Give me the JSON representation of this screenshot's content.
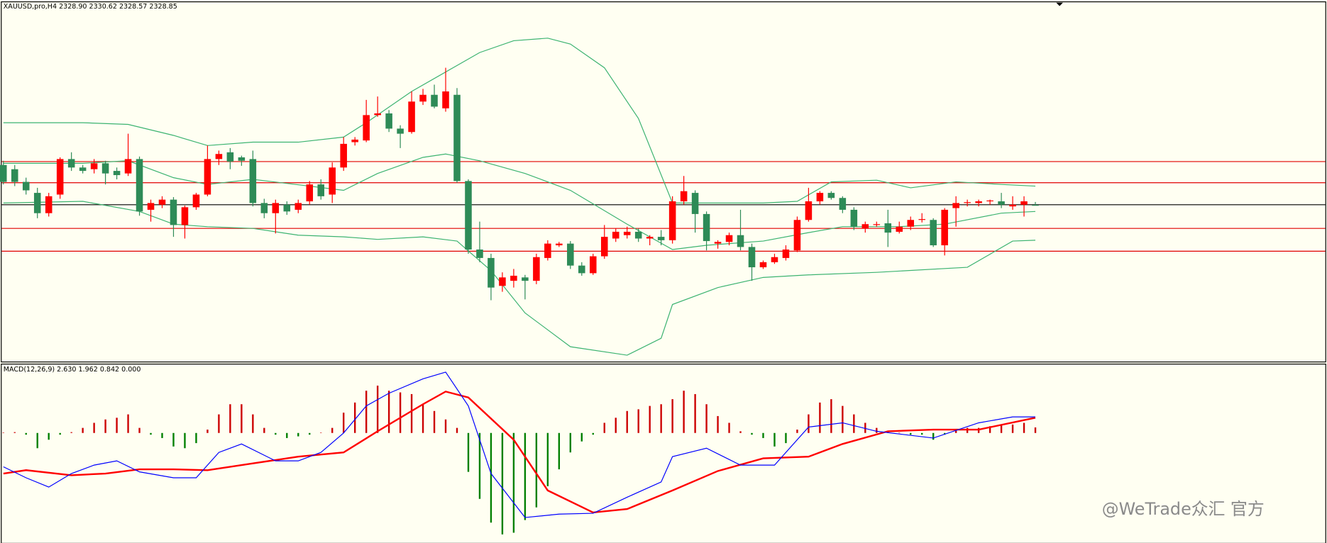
{
  "chart_data": [
    {
      "type": "candlestick",
      "title": "XAUUSD,pro,H4  2328.90 2330.62 2328.57 2328.85",
      "up_color": "#ff0000",
      "down_color": "#2e8b57",
      "ylim": [
        2236,
        2450
      ],
      "open": [
        2352.5,
        2350,
        2342.5,
        2336,
        2324,
        2335,
        2356,
        2351,
        2350,
        2353.5,
        2349,
        2347.5,
        2356,
        2326,
        2329,
        2332,
        2317,
        2327.5,
        2335,
        2356,
        2360,
        2357,
        2356,
        2330,
        2324,
        2329,
        2326,
        2331,
        2341,
        2335,
        2351,
        2366,
        2367,
        2382,
        2383,
        2374,
        2372,
        2390,
        2394,
        2386,
        2394,
        2343,
        2302.5,
        2297.5,
        2281,
        2284,
        2286,
        2284,
        2297.5,
        2305,
        2306,
        2293,
        2288.5,
        2298.5,
        2309,
        2311,
        2313,
        2309,
        2310,
        2308,
        2331,
        2336,
        2323.5,
        2306,
        2307,
        2311,
        2304,
        2292,
        2295,
        2297.5,
        2302,
        2320,
        2331,
        2336,
        2333,
        2326,
        2315,
        2317,
        2318,
        2313,
        2316,
        2320,
        2320,
        2305,
        2327,
        2330,
        2330,
        2331,
        2331,
        2328,
        2329,
        2328.9
      ],
      "high": [
        2355,
        2352.5,
        2345,
        2339,
        2336,
        2357,
        2360,
        2352.5,
        2356,
        2355,
        2351,
        2371,
        2357.5,
        2332,
        2334,
        2333.5,
        2328.5,
        2336,
        2364,
        2361,
        2362.5,
        2358,
        2361,
        2332.5,
        2332,
        2331,
        2332,
        2343,
        2344,
        2354,
        2369,
        2369,
        2391,
        2393,
        2385,
        2376,
        2396,
        2397.5,
        2400,
        2410,
        2398,
        2344,
        2319,
        2300,
        2289,
        2291,
        2287.5,
        2300,
        2308,
        2307,
        2307.5,
        2295,
        2300,
        2317,
        2315,
        2316,
        2315,
        2311,
        2314,
        2334,
        2346,
        2337.5,
        2325,
        2308,
        2312.5,
        2326,
        2306,
        2296,
        2300,
        2305,
        2322,
        2339,
        2337,
        2337,
        2334,
        2327.5,
        2319,
        2319,
        2326,
        2319,
        2322,
        2324,
        2321,
        2327,
        2334,
        2332,
        2332,
        2332,
        2336,
        2334,
        2334,
        2330.62
      ],
      "low": [
        2341,
        2340,
        2335,
        2321,
        2322,
        2332.5,
        2349,
        2347.5,
        2347.5,
        2341,
        2344,
        2346,
        2322.5,
        2319,
        2327,
        2310,
        2309,
        2326,
        2334,
        2352.5,
        2350,
        2352,
        2328,
        2321,
        2312,
        2323,
        2324,
        2329,
        2332,
        2330,
        2349,
        2364,
        2366,
        2381,
        2372,
        2362.5,
        2371,
        2388,
        2386,
        2384,
        2342,
        2300,
        2295,
        2272.5,
        2277.5,
        2280,
        2273,
        2282,
        2296,
        2304,
        2291,
        2287,
        2287.5,
        2297,
        2307,
        2309,
        2307,
        2305,
        2305,
        2306,
        2329,
        2312.5,
        2302,
        2303,
        2305,
        2302,
        2284,
        2291,
        2294,
        2296,
        2301,
        2319,
        2329,
        2332,
        2324,
        2314,
        2312.5,
        2316,
        2304,
        2312,
        2314,
        2318.5,
        2304,
        2299,
        2316,
        2328,
        2328,
        2329,
        2327,
        2326,
        2322,
        2328.57
      ],
      "close": [
        2342.5,
        2342.5,
        2337.5,
        2324,
        2334,
        2356,
        2351,
        2349,
        2353.5,
        2347.5,
        2346.5,
        2356,
        2325,
        2330,
        2332,
        2317,
        2327.5,
        2335,
        2356,
        2359,
        2354.5,
        2355,
        2330,
        2324,
        2330,
        2325,
        2330,
        2341,
        2334,
        2351,
        2365,
        2367.5,
        2382,
        2383,
        2374,
        2371,
        2390,
        2394,
        2387,
        2396,
        2343,
        2302.5,
        2297.5,
        2280,
        2286,
        2287,
        2284,
        2298,
        2306,
        2306,
        2293,
        2288.5,
        2298.5,
        2310,
        2313,
        2313,
        2309,
        2310,
        2308,
        2331,
        2337,
        2323.5,
        2307.5,
        2307,
        2311,
        2304,
        2292,
        2295,
        2298,
        2302.5,
        2320,
        2331,
        2336,
        2333,
        2326,
        2316,
        2317.5,
        2317.5,
        2312.5,
        2316,
        2320,
        2320.5,
        2305,
        2326,
        2330,
        2330.5,
        2331,
        2331.5,
        2329,
        2329,
        2331,
        2328.85
      ],
      "series": [
        {
          "color": "#3cb371",
          "x": [
            0,
            7,
            11,
            15,
            18,
            22,
            26,
            30,
            32,
            36,
            39,
            42,
            45,
            48,
            50,
            53,
            56,
            59,
            63,
            67,
            70,
            73,
            77,
            80,
            84,
            88,
            91
          ],
          "values": [
            2377.5,
            2377.5,
            2376.5,
            2370,
            2364,
            2366,
            2366,
            2369,
            2377.5,
            2396,
            2407.5,
            2419,
            2426,
            2427.5,
            2424,
            2410,
            2380,
            2330,
            2330,
            2330,
            2331,
            2342.5,
            2343.5,
            2339,
            2342.5,
            2341,
            2340
          ]
        },
        {
          "color": "#3cb371",
          "x": [
            0,
            7,
            11,
            15,
            18,
            22,
            27,
            30,
            33,
            37,
            39,
            42,
            46,
            50,
            55,
            59,
            62,
            67,
            71,
            74,
            79,
            83,
            88,
            91
          ],
          "values": [
            2353.5,
            2353.5,
            2355,
            2345,
            2341,
            2344,
            2340,
            2337.5,
            2347.5,
            2357,
            2359,
            2355,
            2347.5,
            2337.5,
            2317.5,
            2302.5,
            2305,
            2307.5,
            2312.5,
            2316,
            2316,
            2317.5,
            2324,
            2325
          ]
        },
        {
          "color": "#3cb371",
          "x": [
            0,
            7,
            12,
            15,
            18,
            22,
            26,
            30,
            33,
            37,
            40,
            43,
            46,
            50,
            55,
            58,
            59,
            63,
            67,
            71,
            77,
            85,
            89,
            91
          ],
          "values": [
            2330,
            2331,
            2325,
            2317.5,
            2316,
            2315,
            2311,
            2310,
            2308.5,
            2310,
            2307.5,
            2290,
            2265,
            2245,
            2240,
            2250,
            2270,
            2280,
            2286,
            2287.5,
            2289,
            2292,
            2307.5,
            2308
          ]
        }
      ],
      "levels": [
        {
          "value": 2354.5,
          "color": "#e00000"
        },
        {
          "value": 2342,
          "color": "#e00000"
        },
        {
          "value": 2329,
          "color": "#000000"
        },
        {
          "value": 2315,
          "color": "#e00000"
        },
        {
          "value": 2301.5,
          "color": "#e00000"
        }
      ]
    },
    {
      "type": "macd",
      "title": "MACD(12,26,9) 2.630 1.962 0.842 0.000",
      "ylim": [
        -52,
        32.8
      ],
      "up_color": "#cc0000",
      "down_color": "#008000",
      "values": [
        0,
        0.4,
        -0.8,
        -7.2,
        -3.2,
        -0.8,
        0.4,
        2.4,
        4.8,
        6.4,
        7.2,
        8.8,
        2.4,
        -0.8,
        -2.4,
        -6.4,
        -7.2,
        -4.8,
        1.6,
        8.8,
        13.6,
        13.6,
        8.8,
        2.4,
        -0.8,
        -2.4,
        -1.6,
        -0.8,
        0,
        2.4,
        9.6,
        14.4,
        20,
        22.4,
        20,
        19.2,
        18.4,
        13.6,
        10.4,
        6.4,
        2.4,
        -18.4,
        -31.2,
        -42.4,
        -48,
        -47.2,
        -41.2,
        -35.2,
        -25.2,
        -17.2,
        -9.2,
        -4,
        -0.8,
        4.8,
        7.2,
        10.4,
        11.2,
        12.8,
        13.6,
        16,
        20,
        18.4,
        13.6,
        8,
        4.8,
        0.8,
        -0.8,
        -2.4,
        -6.4,
        -4.8,
        1.6,
        8.8,
        14.4,
        16,
        12.8,
        8.8,
        4.8,
        2.4,
        0.8,
        0,
        -0.8,
        -0.8,
        -3.2,
        -0.8,
        1.6,
        2.4,
        2.4,
        3.2,
        3.6,
        4,
        4.8,
        2.63
      ],
      "series": [
        {
          "color": "#ff0000",
          "width": 2,
          "x": [
            0,
            2,
            6,
            9,
            12,
            15,
            18,
            22,
            26,
            30,
            33,
            37,
            39,
            41,
            45,
            48,
            52,
            55,
            59,
            63,
            67,
            71,
            74,
            78,
            82,
            86,
            91
          ],
          "values": [
            -19.2,
            -17.6,
            -20,
            -19.2,
            -17.2,
            -17.2,
            -17.6,
            -14.4,
            -11.2,
            -9.2,
            0.8,
            13.6,
            19.6,
            16.8,
            -3.2,
            -27.2,
            -37.6,
            -36,
            -27.2,
            -18,
            -12,
            -11.2,
            -5.2,
            0.8,
            1.6,
            1.6,
            7.2
          ]
        },
        {
          "color": "#0000ff",
          "width": 1,
          "x": [
            0,
            2,
            4,
            6,
            8,
            10,
            12,
            15,
            17,
            19,
            21,
            24,
            26,
            28,
            30,
            32,
            34,
            37,
            39,
            41,
            43,
            46,
            49,
            52,
            55,
            58,
            59,
            62,
            65,
            68,
            71,
            74,
            77,
            82,
            86,
            89,
            91
          ],
          "values": [
            -16,
            -21.2,
            -25.6,
            -19.2,
            -15.2,
            -13.2,
            -18.4,
            -21.2,
            -21.2,
            -9.2,
            -5.2,
            -13.2,
            -13.2,
            -9.2,
            0,
            12.8,
            18.8,
            25.6,
            28.8,
            12.8,
            -19.2,
            -40,
            -38.4,
            -38,
            -30.4,
            -23.2,
            -11.2,
            -7.2,
            -15.2,
            -15.2,
            2.8,
            4.8,
            0.8,
            -2.4,
            4.8,
            7.6,
            7.6
          ]
        }
      ]
    }
  ],
  "watermark": "@WeTrade众汇 官方"
}
